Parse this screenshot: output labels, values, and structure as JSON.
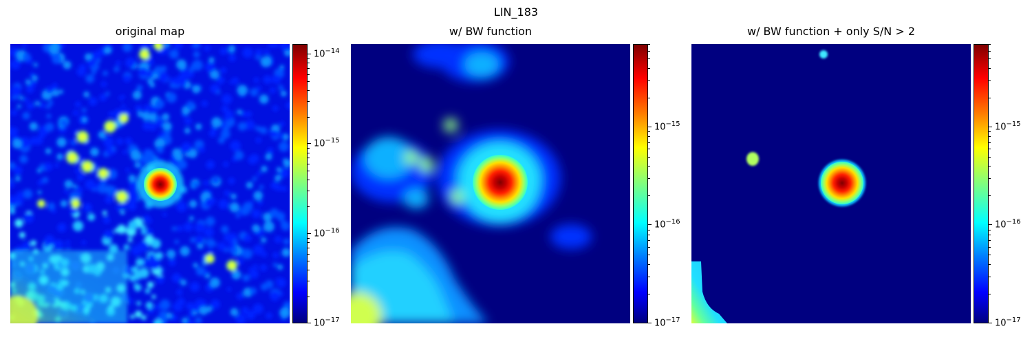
{
  "suptitle": "LIN_183",
  "colormap": "jet",
  "chart_data": [
    {
      "type": "heatmap",
      "title": "original map",
      "color_scale": "log",
      "vmin": 1e-17,
      "vmax": 1.3e-14,
      "ticks": [
        {
          "value": 1e-17,
          "base": "10",
          "exp": "−17"
        },
        {
          "value": 1e-16,
          "base": "10",
          "exp": "−16"
        },
        {
          "value": 1e-15,
          "base": "10",
          "exp": "−15"
        },
        {
          "value": 1e-14,
          "base": "10",
          "exp": "−14"
        }
      ]
    },
    {
      "type": "heatmap",
      "title": "w/ BW function",
      "color_scale": "log",
      "vmin": 1e-17,
      "vmax": 7e-15,
      "ticks": [
        {
          "value": 1e-17,
          "base": "10",
          "exp": "−17"
        },
        {
          "value": 1e-16,
          "base": "10",
          "exp": "−16"
        },
        {
          "value": 1e-15,
          "base": "10",
          "exp": "−15"
        }
      ]
    },
    {
      "type": "heatmap",
      "title": "w/ BW function + only S/N > 2",
      "color_scale": "log",
      "vmin": 1e-17,
      "vmax": 7e-15,
      "ticks": [
        {
          "value": 1e-17,
          "base": "10",
          "exp": "−17"
        },
        {
          "value": 1e-16,
          "base": "10",
          "exp": "−16"
        },
        {
          "value": 1e-15,
          "base": "10",
          "exp": "−15"
        }
      ]
    }
  ]
}
